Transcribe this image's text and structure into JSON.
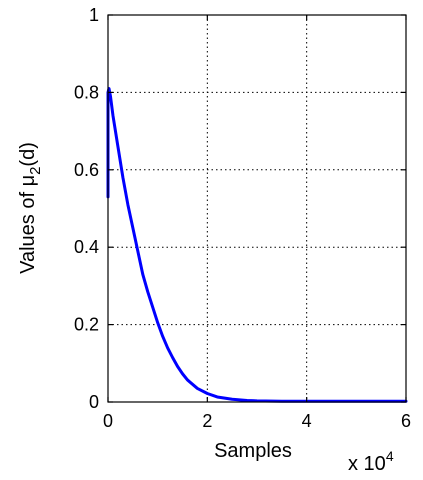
{
  "chart_data": {
    "type": "line",
    "xlabel": "Samples",
    "ylabel_prefix": "Values of μ",
    "ylabel_subscript": "2",
    "ylabel_suffix": "(d)",
    "x_exponent_base": "x 10",
    "x_exponent_power": "4",
    "xlim": [
      0,
      6
    ],
    "ylim": [
      0,
      1
    ],
    "xticks": [
      0,
      2,
      4,
      6
    ],
    "yticks": [
      0,
      0.2,
      0.4,
      0.6,
      0.8,
      1
    ],
    "xtick_labels": [
      "0",
      "2",
      "4",
      "6"
    ],
    "ytick_labels": [
      "0",
      "0.2",
      "0.4",
      "0.6",
      "0.8",
      "1"
    ],
    "grid": true,
    "line_color": "#0000ff",
    "series": [
      {
        "x": [
          0.0,
          0.0,
          0.02,
          0.05,
          0.1,
          0.2,
          0.3,
          0.4,
          0.5,
          0.6,
          0.7,
          0.8,
          0.9,
          1.0,
          1.1,
          1.2,
          1.3,
          1.4,
          1.5,
          1.6,
          1.8,
          2.0,
          2.2,
          2.5,
          2.8,
          3.0,
          3.5,
          4.0,
          5.0,
          6.0
        ],
        "y": [
          0.53,
          0.8,
          0.81,
          0.79,
          0.74,
          0.66,
          0.58,
          0.51,
          0.45,
          0.39,
          0.33,
          0.285,
          0.245,
          0.205,
          0.17,
          0.14,
          0.115,
          0.092,
          0.073,
          0.057,
          0.035,
          0.022,
          0.013,
          0.007,
          0.004,
          0.003,
          0.002,
          0.002,
          0.002,
          0.002
        ]
      }
    ]
  }
}
